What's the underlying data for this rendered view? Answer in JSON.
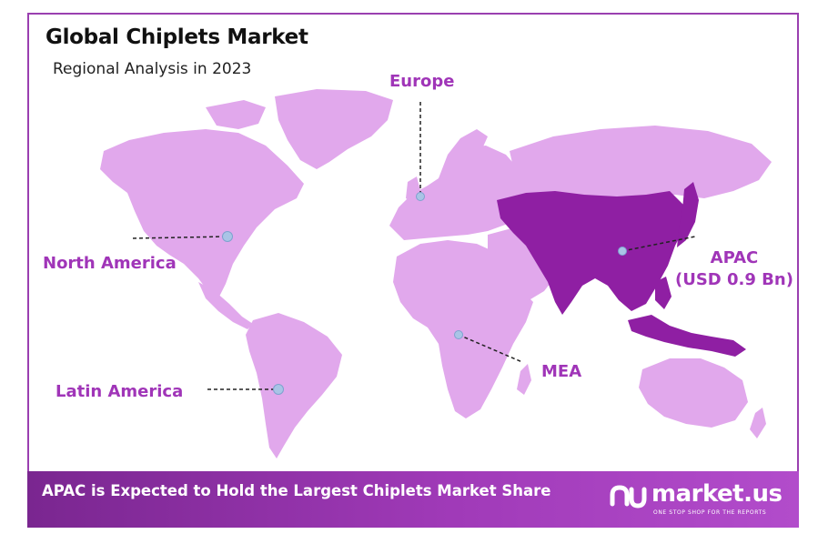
{
  "title": "Global Chiplets Market",
  "subtitle": "Regional Analysis in 2023",
  "regions": {
    "europe": "Europe",
    "north_america": "North America",
    "latin_america": "Latin America",
    "mea": "MEA",
    "apac_name": "APAC",
    "apac_value": "(USD 0.9 Bn)"
  },
  "highlighted_region": "APAC",
  "colors": {
    "map_land": "#e1a8ec",
    "map_highlight": "#8f1fa3",
    "label": "#a035b8",
    "marker": "#a9c4e6",
    "footer": "#9131a8",
    "frame": "#9a3fb0"
  },
  "footer": {
    "headline": "APAC is Expected to Hold the Largest Chiplets Market Share",
    "brand_name": "market.us",
    "brand_tagline": "ONE STOP SHOP FOR THE REPORTS",
    "brand_logo_icon": "market-us-logo-icon"
  }
}
